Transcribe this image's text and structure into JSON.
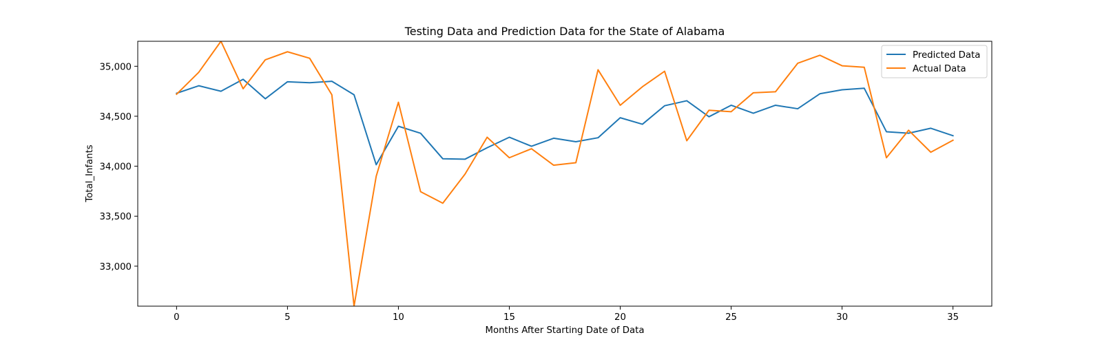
{
  "chart_data": {
    "type": "line",
    "title": "Testing Data and Prediction Data for the State of Alabama",
    "xlabel": "Months After Starting Date of Data",
    "ylabel": "Total_Infants",
    "xlim": [
      -1.75,
      36.75
    ],
    "ylim": [
      32600,
      35250
    ],
    "xticks": [
      0,
      5,
      10,
      15,
      20,
      25,
      30,
      35
    ],
    "xtick_labels": [
      "0",
      "5",
      "10",
      "15",
      "20",
      "25",
      "30",
      "35"
    ],
    "yticks": [
      33000,
      33500,
      34000,
      34500,
      35000
    ],
    "ytick_labels": [
      "33,000",
      "33,500",
      "34,000",
      "34,500",
      "35,000"
    ],
    "grid": false,
    "legend_position": "upper right",
    "x": [
      0,
      1,
      2,
      3,
      4,
      5,
      6,
      7,
      8,
      9,
      10,
      11,
      12,
      13,
      14,
      15,
      16,
      17,
      18,
      19,
      20,
      21,
      22,
      23,
      24,
      25,
      26,
      27,
      28,
      29,
      30,
      31,
      32,
      33,
      34,
      35
    ],
    "series": [
      {
        "name": "Predicted Data",
        "color": "#1f77b4",
        "values": [
          34730,
          34805,
          34750,
          34870,
          34675,
          34845,
          34835,
          34850,
          34715,
          34015,
          34400,
          34330,
          34075,
          34070,
          34185,
          34290,
          34200,
          34280,
          34245,
          34285,
          34485,
          34420,
          34605,
          34655,
          34495,
          34610,
          34530,
          34610,
          34575,
          34725,
          34765,
          34780,
          34345,
          34330,
          34380,
          34305
        ]
      },
      {
        "name": "Actual Data",
        "color": "#ff7f0e",
        "values": [
          34720,
          34940,
          35250,
          34775,
          35065,
          35145,
          35080,
          34715,
          32600,
          33900,
          34640,
          33745,
          33630,
          33920,
          34290,
          34085,
          34175,
          34010,
          34035,
          34965,
          34610,
          34795,
          34950,
          34255,
          34560,
          34545,
          34735,
          34745,
          35030,
          35110,
          35005,
          34990,
          34085,
          34360,
          34140,
          34260
        ]
      }
    ]
  }
}
